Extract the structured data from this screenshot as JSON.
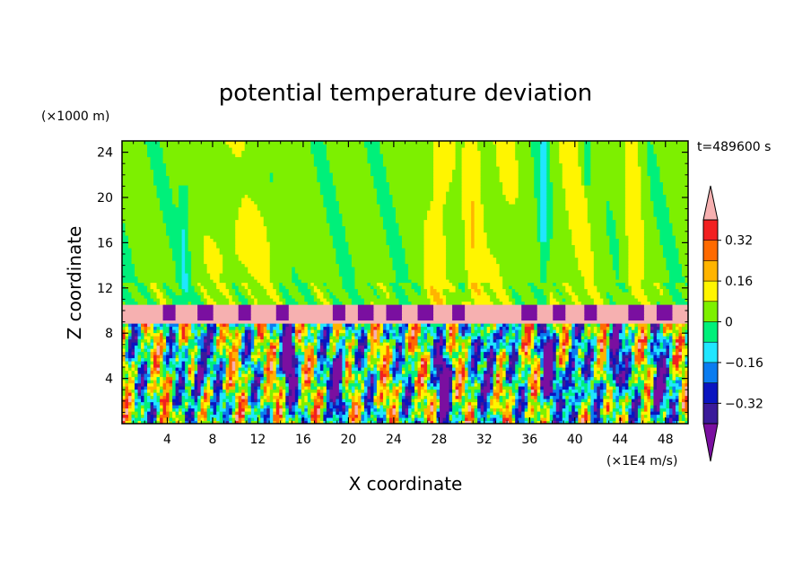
{
  "chart_data": {
    "type": "heatmap",
    "title": "potential temperature deviation",
    "xlabel": "X coordinate",
    "ylabel": "Z coordinate",
    "x_unit": "(×1E4 m/s)",
    "y_unit": "(×1000 m)",
    "time_label": "t=489600 s",
    "xlim": [
      0,
      50
    ],
    "ylim": [
      0,
      25
    ],
    "x_ticks": [
      4,
      8,
      12,
      16,
      20,
      24,
      28,
      32,
      36,
      40,
      44,
      48
    ],
    "y_ticks": [
      4,
      8,
      12,
      16,
      20,
      24
    ],
    "colorbar": {
      "levels": [
        -0.4,
        -0.32,
        -0.24,
        -0.16,
        -0.08,
        0,
        0.08,
        0.16,
        0.24,
        0.32,
        0.4
      ],
      "tick_values": [
        0.32,
        0.16,
        0,
        -0.16,
        -0.32
      ],
      "tick_labels": [
        "0.32",
        "0.16",
        "0",
        "−0.16",
        "−0.32"
      ],
      "colors": [
        "#7a0fa0",
        "#3a1a9a",
        "#0a14c0",
        "#0a7cf0",
        "#20e6ff",
        "#00f07a",
        "#7df000",
        "#fff500",
        "#ffb400",
        "#ff6a00",
        "#f22020",
        "#f6b0b0"
      ]
    },
    "layers": {
      "stratosphere_z_bottom": 10.6,
      "inversion_band_z": [
        9.0,
        10.6
      ],
      "turbulent_layer_z": [
        0,
        9.0
      ],
      "dominant_value_above": 0
    }
  }
}
